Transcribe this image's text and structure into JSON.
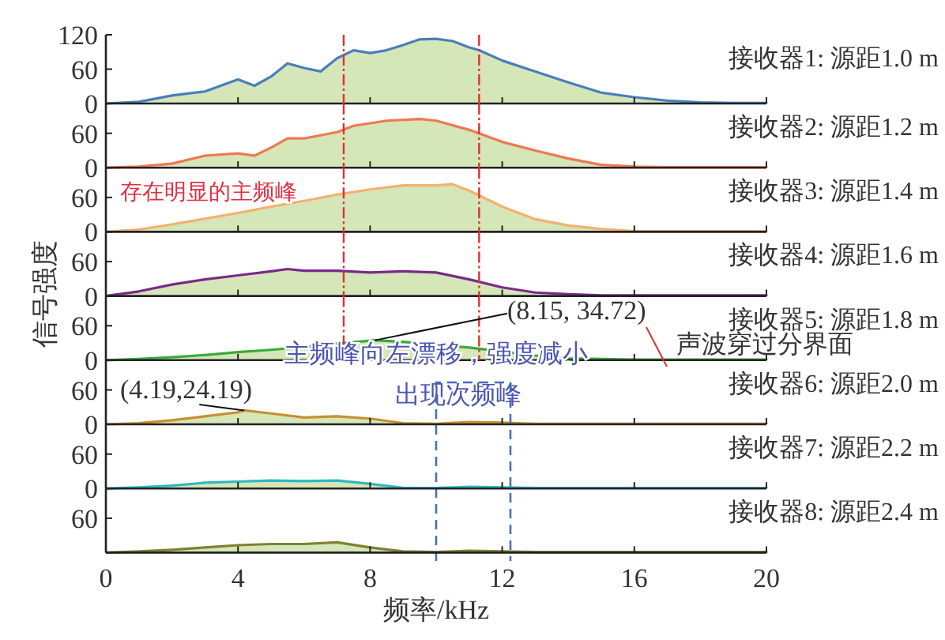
{
  "chart_data": [
    {
      "type": "area",
      "title": "接收器1: 源距1.0 m",
      "x": [
        0,
        1,
        2,
        3,
        4,
        4.5,
        5,
        5.5,
        6,
        6.5,
        7,
        7.5,
        8,
        8.5,
        9,
        9.5,
        10,
        10.5,
        11,
        11.3,
        12,
        13,
        14,
        15,
        16,
        17,
        18,
        19,
        20
      ],
      "series": [
        {
          "color": "#4a7ebb",
          "values": [
            0,
            3,
            14,
            21,
            42,
            31,
            47,
            70,
            62,
            56,
            79,
            93,
            88,
            93,
            102,
            112,
            113,
            109,
            98,
            93,
            75,
            56,
            37,
            19,
            11,
            5,
            2,
            1,
            1
          ]
        }
      ],
      "xlim": [
        0,
        20
      ],
      "xticks": [
        0,
        4,
        8,
        12,
        16,
        20
      ],
      "ylim": [
        0,
        120
      ],
      "yticks": [
        0,
        60,
        120
      ],
      "tick_labels": "y",
      "ref_lines": [
        {
          "axis": "x",
          "value": 7.2,
          "color": "#e03030"
        },
        {
          "axis": "x",
          "value": 11.3,
          "color": "#e03030"
        }
      ]
    },
    {
      "type": "area",
      "title": "接收器2: 源距1.2 m",
      "x": [
        0,
        1,
        2,
        3,
        4,
        4.5,
        5,
        5.5,
        6,
        7,
        7.5,
        8.5,
        9.5,
        10,
        11,
        12,
        13,
        14,
        15,
        16,
        17,
        18,
        19,
        20
      ],
      "series": [
        {
          "color": "#f07850",
          "values": [
            0,
            2,
            7,
            21,
            25,
            21,
            35,
            51,
            51,
            62,
            73,
            82,
            85,
            82,
            66,
            45,
            30,
            16,
            5,
            2,
            1,
            1,
            1,
            1
          ]
        }
      ],
      "xlim": [
        0,
        20
      ],
      "xticks": [
        0,
        4,
        8,
        12,
        16,
        20
      ],
      "ylim": [
        0,
        112
      ],
      "yticks": [
        0,
        60
      ],
      "tick_labels": "y",
      "ref_lines": [
        {
          "axis": "x",
          "value": 7.2,
          "color": "#e03030"
        },
        {
          "axis": "x",
          "value": 11.3,
          "color": "#e03030"
        }
      ]
    },
    {
      "type": "area",
      "title": "接收器3: 源距1.4 m",
      "x": [
        0,
        1,
        2,
        3,
        4,
        5,
        6,
        7,
        8,
        9,
        10,
        10.5,
        11,
        12,
        13,
        14,
        15,
        16,
        17,
        18,
        19,
        20
      ],
      "series": [
        {
          "color": "#f4b070",
          "values": [
            0,
            4,
            13,
            23,
            33,
            44,
            54,
            65,
            74,
            81,
            81,
            83,
            72,
            44,
            22,
            11,
            5,
            1,
            1,
            1,
            1,
            1
          ]
        }
      ],
      "xlim": [
        0,
        20
      ],
      "xticks": [
        0,
        4,
        8,
        12,
        16,
        20
      ],
      "ylim": [
        0,
        112
      ],
      "yticks": [
        0,
        60
      ],
      "tick_labels": "y",
      "annotations": [
        "存在明显的主频峰"
      ],
      "ref_lines": [
        {
          "axis": "x",
          "value": 7.2,
          "color": "#e03030"
        },
        {
          "axis": "x",
          "value": 11.3,
          "color": "#e03030"
        }
      ]
    },
    {
      "type": "area",
      "title": "接收器4: 源距1.6 m",
      "ylabel": "信号强度",
      "x": [
        0,
        1,
        2,
        3,
        4,
        5,
        5.5,
        6,
        7,
        8,
        9,
        10,
        11,
        12,
        13,
        14,
        15,
        16,
        17,
        18,
        19,
        20
      ],
      "series": [
        {
          "color": "#7a2a8a",
          "values": [
            0,
            8,
            20,
            29,
            36,
            43,
            47,
            44,
            44,
            41,
            43,
            41,
            29,
            15,
            6,
            3,
            1,
            1,
            1,
            1,
            1,
            1
          ]
        }
      ],
      "xlim": [
        0,
        20
      ],
      "xticks": [
        0,
        4,
        8,
        12,
        16,
        20
      ],
      "ylim": [
        0,
        112
      ],
      "yticks": [
        0,
        60
      ],
      "tick_labels": "y",
      "ref_lines": [
        {
          "axis": "x",
          "value": 7.2,
          "color": "#e03030"
        },
        {
          "axis": "x",
          "value": 11.3,
          "color": "#e03030"
        }
      ]
    },
    {
      "type": "area",
      "title": "接收器5: 源距1.8 m",
      "x": [
        0,
        1,
        2,
        3,
        4,
        5,
        6,
        7,
        8.15,
        9,
        10,
        11,
        12,
        13,
        14,
        15,
        16,
        17,
        18,
        19,
        20
      ],
      "series": [
        {
          "color": "#3aaa3a",
          "values": [
            0,
            2,
            5,
            9,
            14,
            18,
            23,
            29,
            34.72,
            32,
            27,
            22,
            15,
            8,
            3,
            2,
            1,
            1,
            1,
            1,
            1
          ]
        }
      ],
      "xlim": [
        0,
        20
      ],
      "xticks": [
        0,
        4,
        8,
        12,
        16,
        20
      ],
      "ylim": [
        0,
        112
      ],
      "yticks": [
        0,
        60
      ],
      "tick_labels": "y",
      "annotations": [
        {
          "text": "(8.15, 34.72)",
          "x": 8.15,
          "y": 34.72
        },
        "主频峰向左漂移，强度减小",
        "声波穿过分界面"
      ],
      "ref_lines": [
        {
          "axis": "x",
          "value": 7.2,
          "color": "#e03030"
        },
        {
          "axis": "x",
          "value": 11.3,
          "color": "#e03030"
        }
      ]
    },
    {
      "type": "area",
      "title": "接收器6: 源距2.0 m",
      "x": [
        0,
        1,
        2,
        3,
        4,
        4.19,
        5,
        6,
        7,
        8,
        9,
        10,
        11,
        12,
        13,
        14,
        15,
        16,
        17,
        18,
        19,
        20
      ],
      "series": [
        {
          "color": "#c89030",
          "values": [
            0,
            2,
            7,
            14,
            21,
            24.19,
            19,
            12,
            14,
            10,
            2,
            1,
            4,
            3,
            1,
            1,
            1,
            1,
            1,
            1,
            1,
            1
          ]
        }
      ],
      "xlim": [
        0,
        20
      ],
      "xticks": [
        0,
        4,
        8,
        12,
        16,
        20
      ],
      "ylim": [
        0,
        112
      ],
      "yticks": [
        0,
        60
      ],
      "tick_labels": "y",
      "annotations": [
        {
          "text": "(4.19,24.19)",
          "x": 4.19,
          "y": 24.19
        },
        "出现次频峰"
      ]
    },
    {
      "type": "area",
      "title": "接收器7: 源距2.2 m",
      "x": [
        0,
        1,
        2,
        3,
        4,
        5,
        6,
        7,
        8,
        9,
        10,
        11,
        12,
        13,
        14,
        15,
        16,
        17,
        18,
        19,
        20
      ],
      "series": [
        {
          "color": "#30b8c0",
          "values": [
            0,
            2,
            5,
            10,
            12,
            14,
            13,
            14,
            8,
            1,
            1,
            3,
            2,
            1,
            1,
            1,
            1,
            1,
            1,
            1,
            1
          ]
        }
      ],
      "xlim": [
        0,
        20
      ],
      "xticks": [
        0,
        4,
        8,
        12,
        16,
        20
      ],
      "ylim": [
        0,
        112
      ],
      "yticks": [
        0,
        60
      ],
      "tick_labels": "y"
    },
    {
      "type": "area",
      "title": "接收器8: 源距2.4 m",
      "xlabel": "频率/kHz",
      "x": [
        0,
        1,
        2,
        3,
        4,
        5,
        6,
        7,
        8,
        9,
        10,
        11,
        12,
        13,
        14,
        15,
        16,
        17,
        18,
        19,
        20
      ],
      "series": [
        {
          "color": "#808030",
          "values": [
            0,
            2,
            5,
            9,
            13,
            15,
            15,
            18,
            9,
            2,
            1,
            3,
            2,
            1,
            1,
            1,
            1,
            1,
            1,
            1,
            1
          ]
        }
      ],
      "xlim": [
        0,
        20
      ],
      "xticks": [
        0,
        4,
        8,
        12,
        16,
        20
      ],
      "ylim": [
        0,
        112
      ],
      "yticks": [
        60
      ]
    }
  ]
}
